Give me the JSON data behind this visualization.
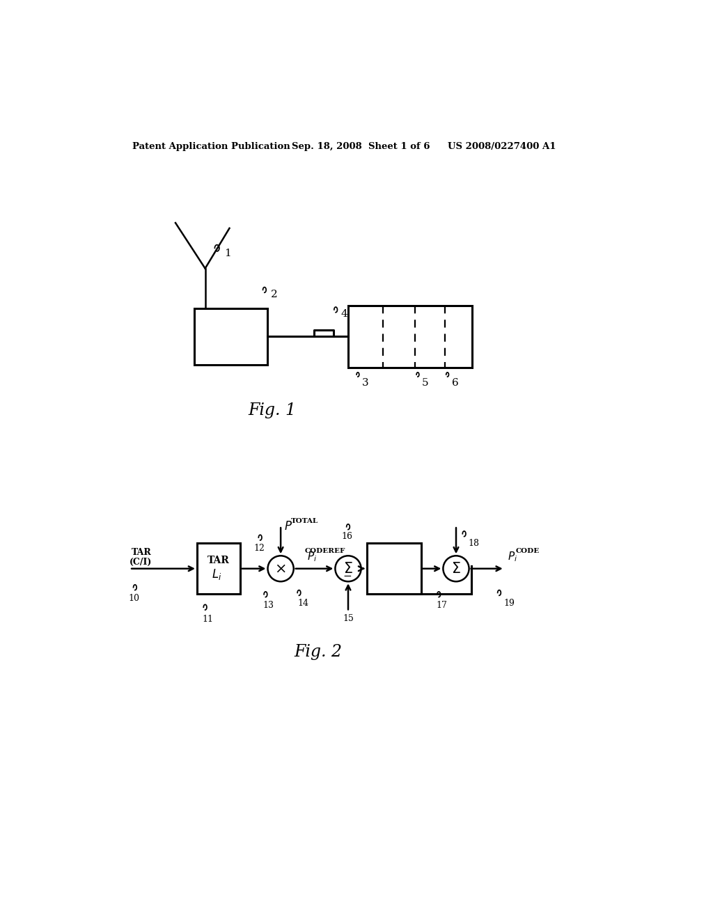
{
  "background_color": "#ffffff",
  "header_left": "Patent Application Publication",
  "header_mid": "Sep. 18, 2008  Sheet 1 of 6",
  "header_right": "US 2008/0227400 A1",
  "fig1_label": "Fig. 1",
  "fig2_label": "Fig. 2"
}
